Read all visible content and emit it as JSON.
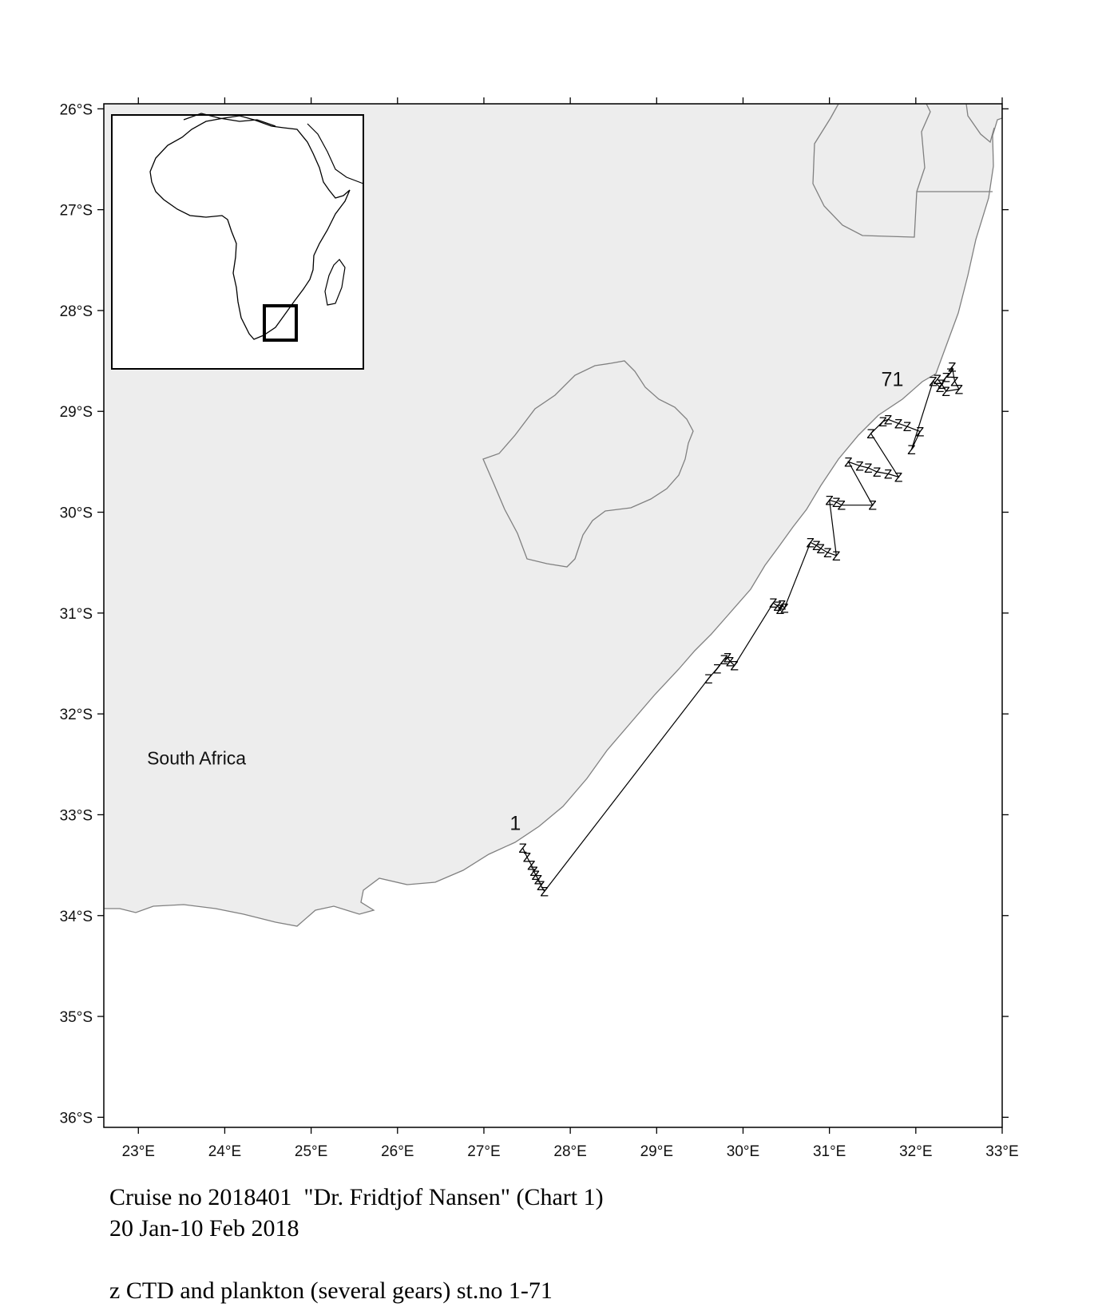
{
  "map": {
    "lon_range": [
      22.6,
      33.0
    ],
    "lat_range": [
      -36.1,
      -25.95
    ],
    "land_color": "#ededed",
    "border_color": "#808080",
    "lon_ticks": [
      {
        "value": 23,
        "label": "23°E"
      },
      {
        "value": 24,
        "label": "24°E"
      },
      {
        "value": 25,
        "label": "25°E"
      },
      {
        "value": 26,
        "label": "26°E"
      },
      {
        "value": 27,
        "label": "27°E"
      },
      {
        "value": 28,
        "label": "28°E"
      },
      {
        "value": 29,
        "label": "29°E"
      },
      {
        "value": 30,
        "label": "30°E"
      },
      {
        "value": 31,
        "label": "31°E"
      },
      {
        "value": 32,
        "label": "32°E"
      },
      {
        "value": 33,
        "label": "33°E"
      }
    ],
    "lat_ticks": [
      {
        "value": -26,
        "label": "26°S"
      },
      {
        "value": -27,
        "label": "27°S"
      },
      {
        "value": -28,
        "label": "28°S"
      },
      {
        "value": -29,
        "label": "29°S"
      },
      {
        "value": -30,
        "label": "30°S"
      },
      {
        "value": -31,
        "label": "31°S"
      },
      {
        "value": -32,
        "label": "32°S"
      },
      {
        "value": -33,
        "label": "33°S"
      },
      {
        "value": -34,
        "label": "34°S"
      },
      {
        "value": -35,
        "label": "35°S"
      },
      {
        "value": -36,
        "label": "36°S"
      }
    ],
    "country_label": {
      "text": "South Africa",
      "lon": 23.1,
      "lat": -32.5
    },
    "station_first": {
      "text": "1",
      "lon": 27.3,
      "lat": -33.15
    },
    "station_last": {
      "text": "71",
      "lon": 31.6,
      "lat": -28.75
    },
    "station_symbol": "Z",
    "stations": [
      [
        27.45,
        -33.33
      ],
      [
        27.5,
        -33.42
      ],
      [
        27.55,
        -33.5
      ],
      [
        27.58,
        -33.56
      ],
      [
        27.6,
        -33.6
      ],
      [
        27.63,
        -33.64
      ],
      [
        27.66,
        -33.7
      ],
      [
        27.7,
        -33.76
      ],
      [
        29.6,
        -31.65
      ],
      [
        29.7,
        -31.55
      ],
      [
        29.78,
        -31.46
      ],
      [
        29.82,
        -31.44
      ],
      [
        29.85,
        -31.48
      ],
      [
        29.9,
        -31.52
      ],
      [
        30.35,
        -30.9
      ],
      [
        30.4,
        -30.93
      ],
      [
        30.43,
        -30.96
      ],
      [
        30.45,
        -30.92
      ],
      [
        30.48,
        -30.95
      ],
      [
        30.78,
        -30.3
      ],
      [
        30.85,
        -30.33
      ],
      [
        30.9,
        -30.36
      ],
      [
        30.98,
        -30.4
      ],
      [
        31.08,
        -30.43
      ],
      [
        31.0,
        -29.88
      ],
      [
        31.08,
        -29.9
      ],
      [
        31.14,
        -29.93
      ],
      [
        31.5,
        -29.93
      ],
      [
        31.22,
        -29.5
      ],
      [
        31.35,
        -29.54
      ],
      [
        31.45,
        -29.56
      ],
      [
        31.55,
        -29.6
      ],
      [
        31.68,
        -29.62
      ],
      [
        31.8,
        -29.65
      ],
      [
        31.48,
        -29.22
      ],
      [
        31.62,
        -29.1
      ],
      [
        31.68,
        -29.08
      ],
      [
        31.8,
        -29.12
      ],
      [
        31.9,
        -29.15
      ],
      [
        32.05,
        -29.2
      ],
      [
        31.95,
        -29.38
      ],
      [
        32.2,
        -28.7
      ],
      [
        32.28,
        -28.76
      ],
      [
        32.35,
        -28.66
      ],
      [
        32.4,
        -28.62
      ],
      [
        32.42,
        -28.56
      ],
      [
        32.45,
        -28.7
      ],
      [
        32.5,
        -28.78
      ],
      [
        32.35,
        -28.8
      ],
      [
        32.3,
        -28.73
      ],
      [
        32.25,
        -28.68
      ]
    ],
    "inset": {
      "box": "southern-africa-locator",
      "frame_color": "#000000"
    }
  },
  "caption": {
    "line1": "Cruise no 2018401  \"Dr. Fridtjof Nansen\" (Chart 1)",
    "line2": "20 Jan-10 Feb 2018",
    "line3": "z CTD and plankton (several gears) st.no 1-71"
  }
}
